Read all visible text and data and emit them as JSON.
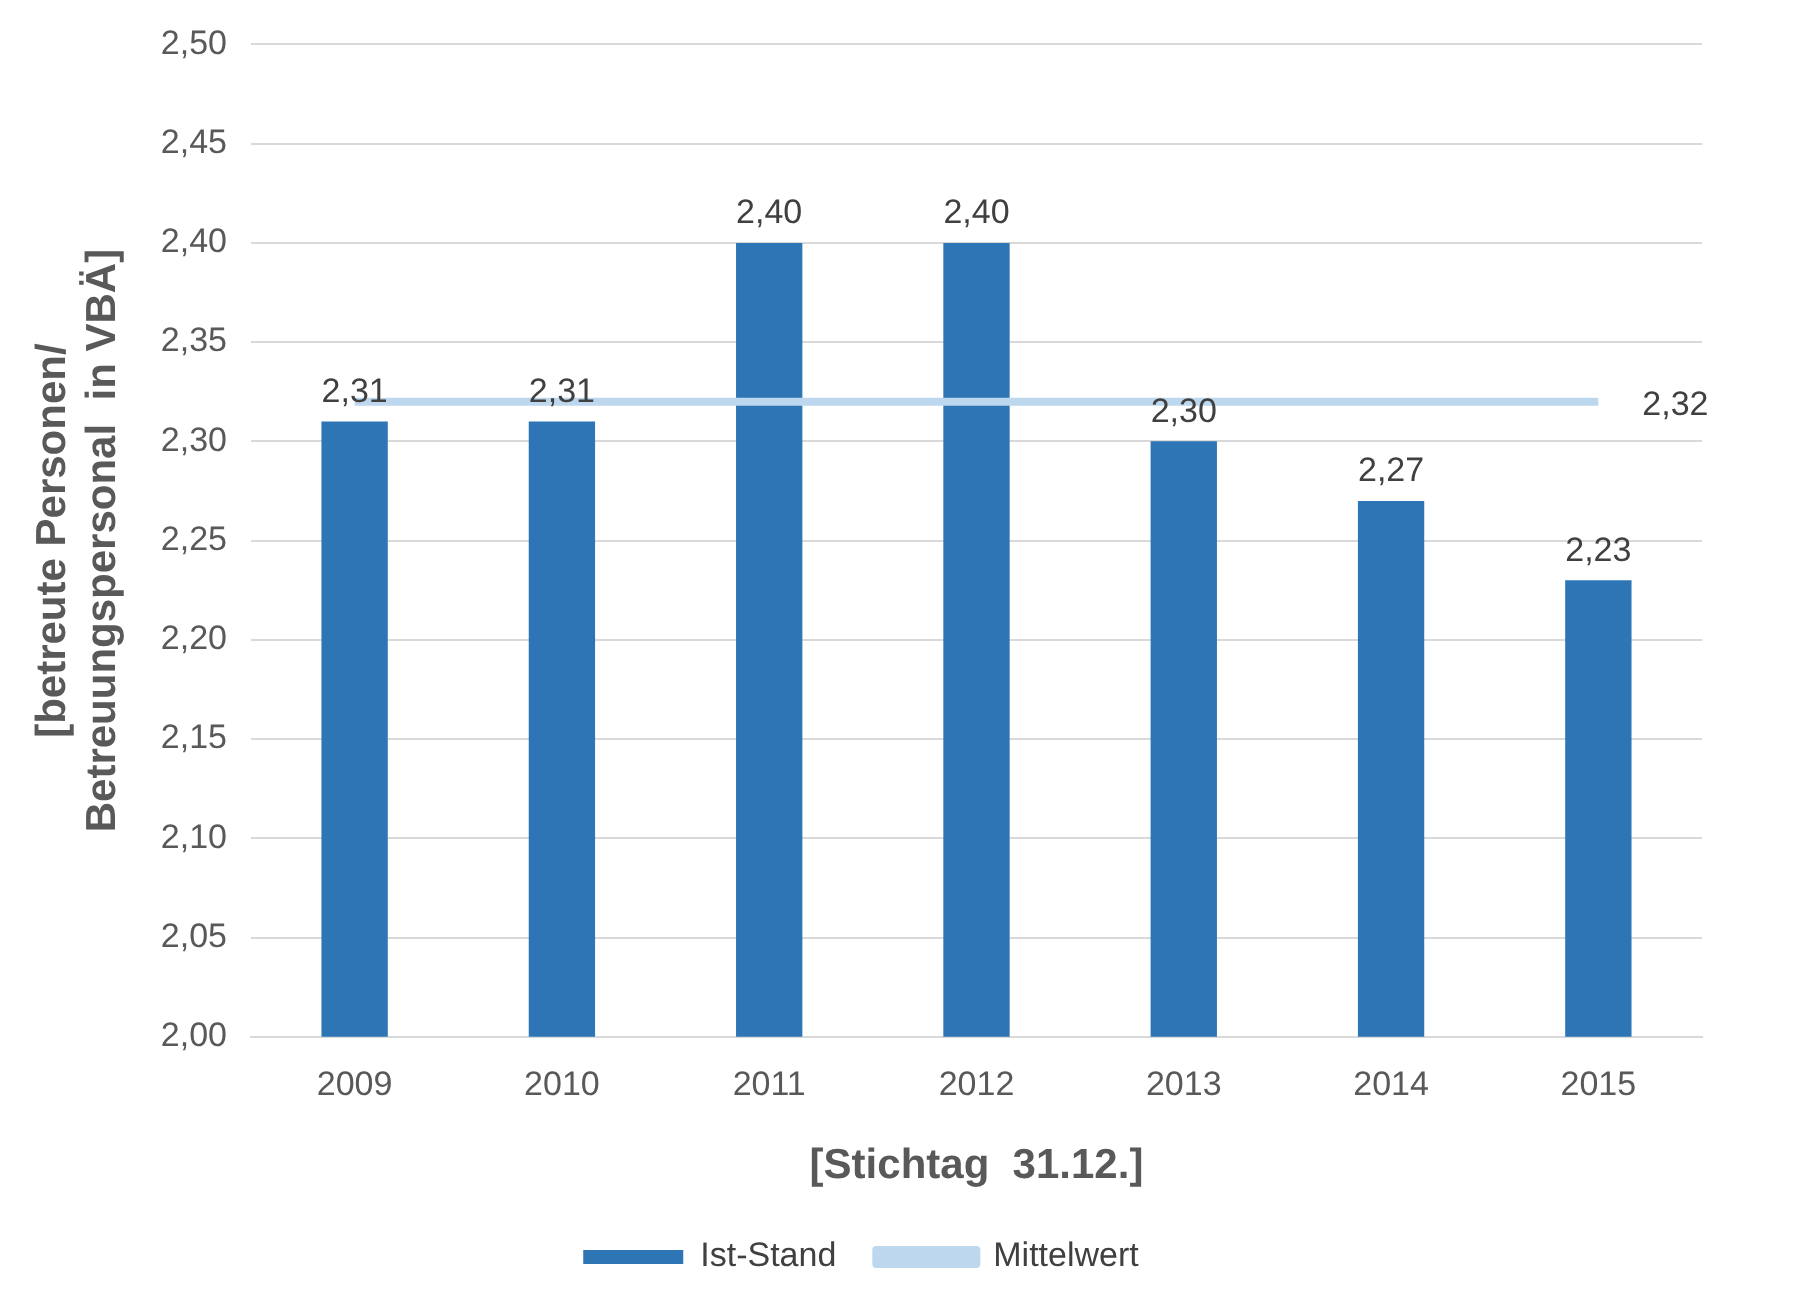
{
  "chart_data": {
    "type": "bar",
    "xlabel": "[Stichtag  31.12.]",
    "ylabel": "[betreute Personen/\nBetreuungspersonal  in VBÄ]",
    "categories": [
      "2009",
      "2010",
      "2011",
      "2012",
      "2013",
      "2014",
      "2015"
    ],
    "series": [
      {
        "name": "Ist-Stand",
        "color": "#2e75b6",
        "values": [
          2.31,
          2.31,
          2.4,
          2.4,
          2.3,
          2.27,
          2.23
        ],
        "value_labels": [
          "2,31",
          "2,31",
          "2,40",
          "2,40",
          "2,30",
          "2,27",
          "2,23"
        ]
      },
      {
        "name": "Mittelwert",
        "type": "line",
        "color": "#bdd7ee",
        "values": [
          2.32,
          2.32,
          2.32,
          2.32,
          2.32,
          2.32,
          2.32
        ],
        "value_labels": [
          null,
          null,
          null,
          null,
          null,
          null,
          "2,32"
        ]
      }
    ],
    "ylim": [
      2,
      2.5
    ],
    "yticks": [
      {
        "value": 2,
        "label": "2,00"
      },
      {
        "value": 2.05,
        "label": "2,05"
      },
      {
        "value": 2.1,
        "label": "2,10"
      },
      {
        "value": 2.15,
        "label": "2,15"
      },
      {
        "value": 2.2,
        "label": "2,20"
      },
      {
        "value": 2.25,
        "label": "2,25"
      },
      {
        "value": 2.3,
        "label": "2,30"
      },
      {
        "value": 2.35,
        "label": "2,35"
      },
      {
        "value": 2.4,
        "label": "2,40"
      },
      {
        "value": 2.45,
        "label": "2,45"
      },
      {
        "value": 2.5,
        "label": "2,50"
      }
    ],
    "grid": "y",
    "legend": "bottom",
    "marker": "none"
  }
}
